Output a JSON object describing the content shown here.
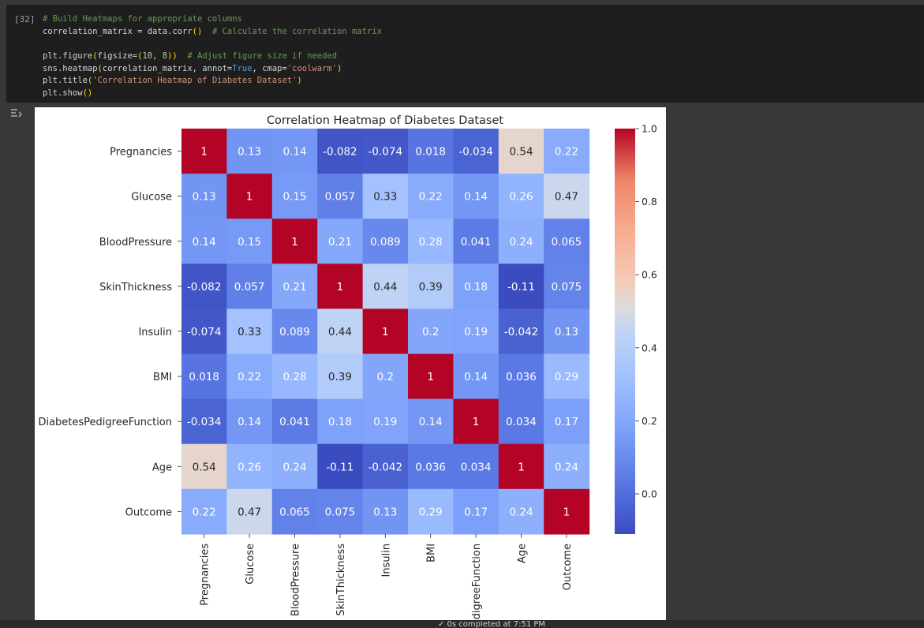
{
  "cell": {
    "execution_count": "[32]",
    "output_toggle_icon": "output-collapse-icon"
  },
  "code_lines": [
    [
      {
        "t": "# Build Heatmaps for appropriate columns",
        "c": "c-com"
      }
    ],
    [
      {
        "t": "correlation_matrix = data.corr",
        "c": ""
      },
      {
        "t": "()",
        "c": "c-paren"
      },
      {
        "t": "  # Calculate the correlation matrix",
        "c": "c-com"
      }
    ],
    [],
    [
      {
        "t": "plt.figure",
        "c": ""
      },
      {
        "t": "(",
        "c": "c-paren"
      },
      {
        "t": "figsize=",
        "c": ""
      },
      {
        "t": "(",
        "c": "c-paren"
      },
      {
        "t": "10",
        "c": "c-num"
      },
      {
        "t": ", ",
        "c": ""
      },
      {
        "t": "8",
        "c": "c-num"
      },
      {
        "t": ")",
        "c": "c-paren"
      },
      {
        "t": ")",
        "c": "c-paren"
      },
      {
        "t": "  # Adjust figure size if needed",
        "c": "c-com"
      }
    ],
    [
      {
        "t": "sns.heatmap",
        "c": ""
      },
      {
        "t": "(",
        "c": "c-paren"
      },
      {
        "t": "correlation_matrix, annot=",
        "c": ""
      },
      {
        "t": "True",
        "c": "c-kw"
      },
      {
        "t": ", cmap=",
        "c": ""
      },
      {
        "t": "'coolwarm'",
        "c": "c-str"
      },
      {
        "t": ")",
        "c": "c-paren"
      }
    ],
    [
      {
        "t": "plt.title",
        "c": ""
      },
      {
        "t": "(",
        "c": "c-paren"
      },
      {
        "t": "'Correlation Heatmap of Diabetes Dataset'",
        "c": "c-str"
      },
      {
        "t": ")",
        "c": "c-paren"
      }
    ],
    [
      {
        "t": "plt.show",
        "c": ""
      },
      {
        "t": "()",
        "c": "c-paren"
      }
    ]
  ],
  "status": {
    "text": "✓ 0s    completed at 7:51 PM"
  },
  "chart_data": {
    "type": "heatmap",
    "title": "Correlation Heatmap of Diabetes Dataset",
    "row_labels": [
      "Pregnancies",
      "Glucose",
      "BloodPressure",
      "SkinThickness",
      "Insulin",
      "BMI",
      "DiabetesPedigreeFunction",
      "Age",
      "Outcome"
    ],
    "col_labels": [
      "Pregnancies",
      "Glucose",
      "BloodPressure",
      "SkinThickness",
      "Insulin",
      "BMI",
      "digreeFunction",
      "Age",
      "Outcome"
    ],
    "values": [
      [
        1,
        0.13,
        0.14,
        -0.082,
        -0.074,
        0.018,
        -0.034,
        0.54,
        0.22
      ],
      [
        0.13,
        1,
        0.15,
        0.057,
        0.33,
        0.22,
        0.14,
        0.26,
        0.47
      ],
      [
        0.14,
        0.15,
        1,
        0.21,
        0.089,
        0.28,
        0.041,
        0.24,
        0.065
      ],
      [
        -0.082,
        0.057,
        0.21,
        1,
        0.44,
        0.39,
        0.18,
        -0.11,
        0.075
      ],
      [
        -0.074,
        0.33,
        0.089,
        0.44,
        1,
        0.2,
        0.19,
        -0.042,
        0.13
      ],
      [
        0.018,
        0.22,
        0.28,
        0.39,
        0.2,
        1,
        0.14,
        0.036,
        0.29
      ],
      [
        -0.034,
        0.14,
        0.041,
        0.18,
        0.19,
        0.14,
        1,
        0.034,
        0.17
      ],
      [
        0.54,
        0.26,
        0.24,
        -0.11,
        -0.042,
        0.036,
        0.034,
        1,
        0.24
      ],
      [
        0.22,
        0.47,
        0.065,
        0.075,
        0.13,
        0.29,
        0.17,
        0.24,
        1
      ]
    ],
    "colormap": "coolwarm",
    "colorbar": {
      "range": [
        -0.11,
        1.0
      ],
      "ticks": [
        "1.0",
        "0.8",
        "0.6",
        "0.4",
        "0.2",
        "0.0"
      ],
      "tick_values": [
        1.0,
        0.8,
        0.6,
        0.4,
        0.2,
        0.0
      ]
    }
  }
}
